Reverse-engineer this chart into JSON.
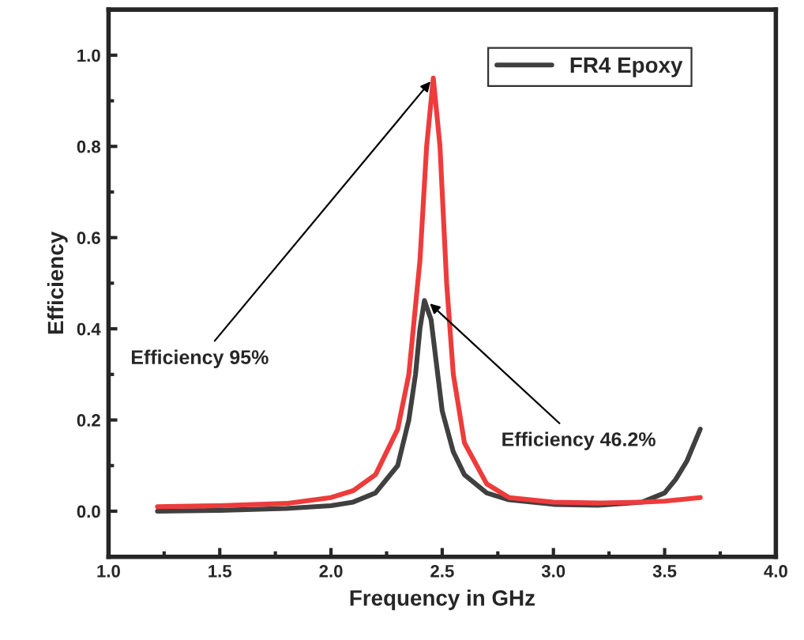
{
  "chart_data": {
    "type": "line",
    "xlabel": "Frequency in GHz",
    "ylabel": "Efficiency",
    "xlim": [
      1.0,
      4.0
    ],
    "ylim": [
      -0.1,
      1.1
    ],
    "xticks": [
      {
        "value": 1,
        "label": "1.0"
      },
      1.5,
      {
        "value": 2,
        "label": "2.0"
      },
      2.5,
      {
        "value": 3,
        "label": "3.0"
      },
      3.5,
      {
        "value": 4,
        "label": "4.0"
      }
    ],
    "yticks": [
      {
        "value": 0,
        "label": "0.0"
      },
      0.2,
      0.4,
      0.6,
      0.8,
      {
        "value": 1,
        "label": "1.0"
      }
    ],
    "grid": false,
    "legend": "top right",
    "marker": "none",
    "line_style": "solid",
    "series": [
      {
        "name": "FR4 Epoxy",
        "color": "#404040",
        "x": [
          1.22,
          1.5,
          1.8,
          2.0,
          2.1,
          2.2,
          2.3,
          2.35,
          2.38,
          2.4,
          2.42,
          2.45,
          2.48,
          2.5,
          2.55,
          2.6,
          2.7,
          2.8,
          3.0,
          3.2,
          3.4,
          3.5,
          3.55,
          3.6,
          3.66
        ],
        "values": [
          0.0,
          0.002,
          0.006,
          0.012,
          0.02,
          0.04,
          0.1,
          0.2,
          0.3,
          0.4,
          0.462,
          0.42,
          0.3,
          0.22,
          0.13,
          0.08,
          0.04,
          0.025,
          0.015,
          0.013,
          0.02,
          0.04,
          0.07,
          0.11,
          0.18
        ]
      },
      {
        "color": "#ee3b3b",
        "x": [
          1.22,
          1.5,
          1.8,
          2.0,
          2.1,
          2.2,
          2.3,
          2.35,
          2.4,
          2.43,
          2.46,
          2.49,
          2.52,
          2.55,
          2.6,
          2.7,
          2.8,
          3.0,
          3.2,
          3.4,
          3.5,
          3.66
        ],
        "values": [
          0.01,
          0.012,
          0.017,
          0.03,
          0.045,
          0.08,
          0.18,
          0.3,
          0.55,
          0.8,
          0.95,
          0.8,
          0.5,
          0.3,
          0.15,
          0.06,
          0.03,
          0.02,
          0.018,
          0.02,
          0.022,
          0.03
        ]
      }
    ],
    "annotations": [
      {
        "text": "Efficiency 95%",
        "x": 2.46,
        "y": 0.95
      },
      {
        "text": "Efficiency 46.2%",
        "x": 2.43,
        "y": 0.462
      }
    ]
  }
}
